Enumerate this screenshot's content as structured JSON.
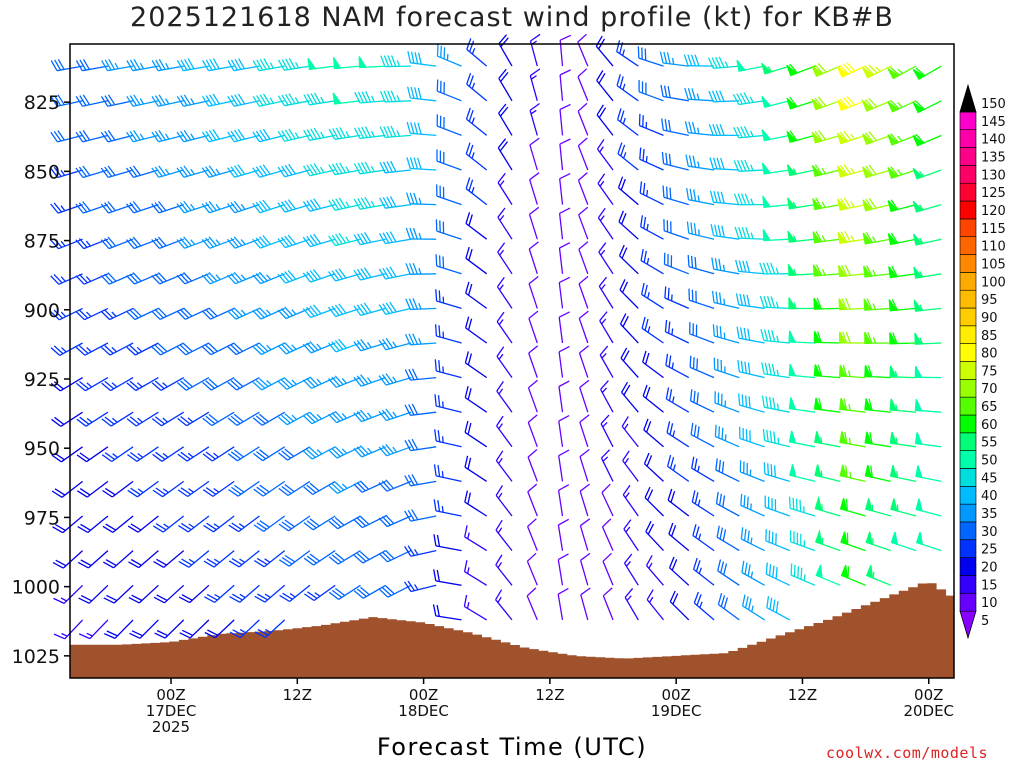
{
  "chart_data": {
    "type": "wind-profile",
    "title": "2025121618 NAM forecast wind profile (kt) for KB#B",
    "xlabel": "Forecast Time (UTC)",
    "ylabel": "",
    "y_axis": {
      "ticks": [
        825,
        850,
        875,
        900,
        925,
        950,
        975,
        1000,
        1025
      ],
      "range": [
        804,
        1033
      ],
      "inverted": true,
      "units": "hPa"
    },
    "x_axis": {
      "range_hours": [
        -8,
        62
      ],
      "ticks": [
        {
          "hour": 0,
          "labels": [
            "00Z",
            "17DEC",
            "2025"
          ]
        },
        {
          "hour": 10,
          "labels": [
            "12Z"
          ]
        },
        {
          "hour": 20,
          "labels": [
            "00Z",
            "18DEC"
          ]
        },
        {
          "hour": 30,
          "labels": [
            "12Z"
          ]
        },
        {
          "hour": 40,
          "labels": [
            "00Z",
            "19DEC"
          ]
        },
        {
          "hour": 50,
          "labels": [
            "12Z"
          ]
        },
        {
          "hour": 60,
          "labels": [
            "00Z",
            "20DEC"
          ]
        }
      ]
    },
    "colorbar": {
      "levels": [
        5,
        10,
        15,
        20,
        25,
        30,
        35,
        40,
        45,
        50,
        55,
        60,
        65,
        70,
        75,
        80,
        85,
        90,
        95,
        100,
        105,
        110,
        115,
        120,
        125,
        130,
        135,
        140,
        145,
        150
      ],
      "colors": [
        "#8800ff",
        "#6600ff",
        "#3300ff",
        "#0000ee",
        "#0033ff",
        "#0066ff",
        "#0099ff",
        "#00bbff",
        "#00dddd",
        "#00ffaa",
        "#00ff77",
        "#00ff00",
        "#55ff00",
        "#99ff00",
        "#ccff00",
        "#ffff00",
        "#ffee00",
        "#ffcc00",
        "#ffbb00",
        "#ffaa00",
        "#ff8800",
        "#ff6600",
        "#ff4400",
        "#ff0000",
        "#ff0033",
        "#ff0066",
        "#ff0088",
        "#ff00aa",
        "#ff00cc",
        "#ff00ff"
      ]
    },
    "surface": {
      "color": "#a0522d",
      "hours": [
        -8,
        -4,
        0,
        4,
        8,
        12,
        16,
        20,
        24,
        28,
        32,
        36,
        40,
        44,
        48,
        52,
        56,
        60,
        62
      ],
      "pressure": [
        1021,
        1021,
        1020,
        1017,
        1016,
        1014,
        1011,
        1013,
        1017,
        1022,
        1025,
        1026,
        1025,
        1024,
        1018,
        1012,
        1005,
        998,
        1004
      ]
    },
    "wind_barbs": {
      "hours_step": 1,
      "levels_step": 12.5,
      "times": [
        -7,
        -5,
        -3,
        -1,
        1,
        3,
        5,
        7,
        9,
        11,
        13,
        15,
        17,
        19,
        21,
        23,
        25,
        27,
        29,
        31,
        33,
        35,
        37,
        39,
        41,
        43,
        45,
        47,
        49,
        51,
        53,
        55,
        57,
        59,
        61
      ],
      "direction_keyframes": {
        "hours": [
          -7,
          10,
          20,
          24,
          28,
          31,
          35,
          40,
          50,
          61
        ],
        "dir_low": [
          220,
          225,
          240,
          290,
          330,
          350,
          340,
          320,
          300,
          300
        ],
        "dir_high": [
          260,
          260,
          270,
          300,
          340,
          355,
          320,
          280,
          250,
          240
        ]
      },
      "speed_keyframes": {
        "hours": [
          -7,
          5,
          15,
          20,
          25,
          30,
          33,
          37,
          42,
          50,
          55,
          61
        ],
        "spd_low": [
          15,
          20,
          25,
          25,
          15,
          8,
          8,
          12,
          20,
          40,
          55,
          45
        ],
        "spd_high": [
          30,
          40,
          50,
          45,
          25,
          10,
          12,
          25,
          35,
          55,
          80,
          60
        ]
      }
    },
    "watermark": "coolwx.com/models"
  }
}
